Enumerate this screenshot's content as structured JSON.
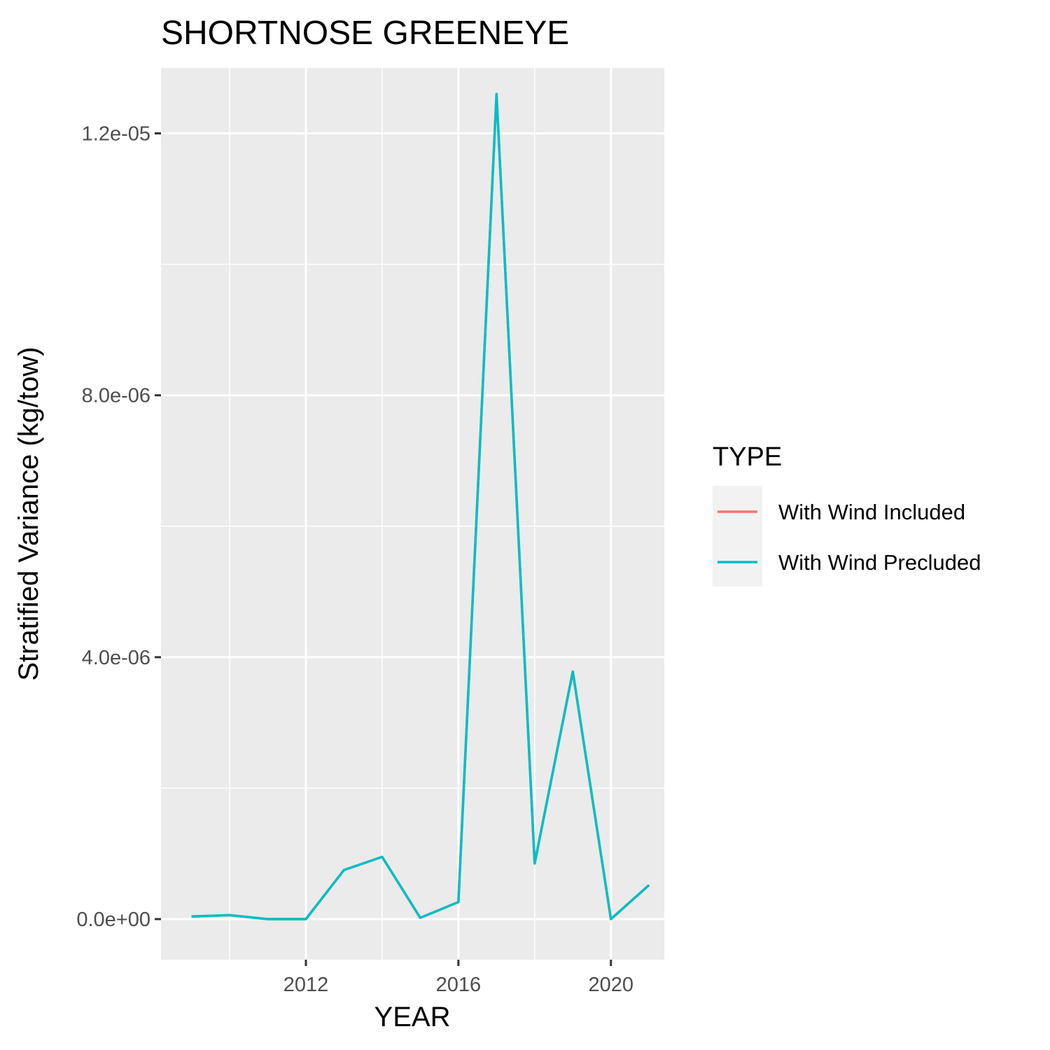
{
  "chart_data": {
    "type": "line",
    "title": "SHORTNOSE GREENEYE",
    "xlabel": "YEAR",
    "ylabel": "Stratified Variance (kg/tow)",
    "xlim": [
      2008.2,
      2021.4
    ],
    "ylim": [
      -6.2e-07,
      1.3e-05
    ],
    "x_ticks": [
      2012,
      2016,
      2020
    ],
    "x_tick_labels": [
      "2012",
      "2016",
      "2020"
    ],
    "y_ticks": [
      0,
      4e-06,
      8e-06,
      1.2e-05
    ],
    "y_tick_labels": [
      "0.0e+00",
      "4.0e-06",
      "8.0e-06",
      "1.2e-05"
    ],
    "grid": true,
    "legend_position": "right",
    "legend_title": "TYPE",
    "series": [
      {
        "name": "With Wind Included",
        "color": "#F8766D",
        "x": [
          2009,
          2010,
          2011,
          2012,
          2013,
          2014,
          2015,
          2016,
          2017,
          2018,
          2019,
          2020,
          2021
        ],
        "y": [
          4e-08,
          6e-08,
          0,
          0,
          7.5e-07,
          9.5e-07,
          2e-08,
          2.6e-07,
          1.26e-05,
          8.5e-07,
          3.78e-06,
          0,
          5.2e-07
        ]
      },
      {
        "name": "With Wind Precluded",
        "color": "#00BFC4",
        "x": [
          2009,
          2010,
          2011,
          2012,
          2013,
          2014,
          2015,
          2016,
          2017,
          2018,
          2019,
          2020,
          2021
        ],
        "y": [
          4e-08,
          6e-08,
          0,
          0,
          7.5e-07,
          9.5e-07,
          2e-08,
          2.6e-07,
          1.26e-05,
          8.5e-07,
          3.78e-06,
          0,
          5.2e-07
        ]
      }
    ]
  }
}
